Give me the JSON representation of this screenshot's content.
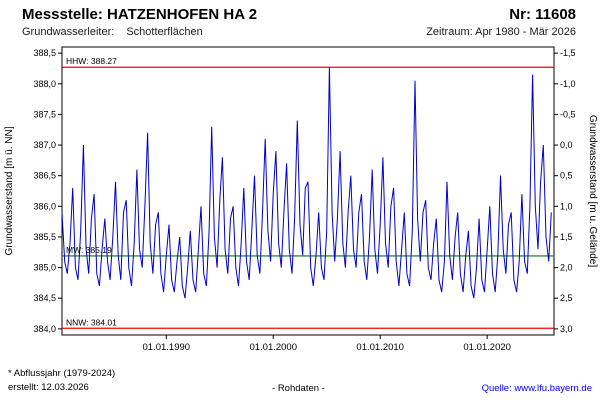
{
  "header": {
    "title": "Messstelle: HATZENHOFEN HA 2",
    "number": "Nr: 11608",
    "aquifer_label": "Grundwasserleiter:",
    "aquifer_value": "Schotterflächen",
    "period": "Zeitraum: Apr 1980 - Mär 2026"
  },
  "footer": {
    "note": "* Abflussjahr (1979-2024)",
    "created": "erstellt: 12.03.2026",
    "center": "- Rohdaten -",
    "source": "Quelle: www.lfu.bayern.de",
    "source_color": "#0000ff"
  },
  "chart_data": {
    "type": "line",
    "title": "",
    "x_axis": "date",
    "x_range": [
      1980.25,
      2026.25
    ],
    "x_start": 1980.25,
    "x_step": 0.25,
    "x_ticks": [
      {
        "t": 1990.0,
        "label": "01.01.1990"
      },
      {
        "t": 2000.0,
        "label": "01.01.2000"
      },
      {
        "t": 2010.0,
        "label": "01.01.2010"
      },
      {
        "t": 2020.0,
        "label": "01.01.2020"
      }
    ],
    "y_left": {
      "label": "Grundwasserstand [m ü. NN]",
      "min": 383.9,
      "max": 388.6,
      "ticks": [
        388.5,
        388.0,
        387.5,
        387.0,
        386.5,
        386.0,
        385.5,
        385.0,
        384.5,
        384.0
      ]
    },
    "y_right": {
      "label": "Grundwasserstand [m u. Gelände]",
      "ground_level": 387.0,
      "ticks": [
        -1.5,
        -1.0,
        -0.5,
        0.0,
        0.5,
        1.0,
        1.5,
        2.0,
        2.5,
        3.0
      ]
    },
    "reference_lines": [
      {
        "name": "HHW",
        "value": 388.27,
        "label": "HHW: 388.27",
        "color": "#ff0000"
      },
      {
        "name": "MW",
        "value": 385.19,
        "label": "MW: 385.19",
        "color": "#008000"
      },
      {
        "name": "NNW",
        "value": 384.01,
        "label": "NNW: 384.01",
        "color": "#ff0000"
      }
    ],
    "grid": false,
    "legend": "none",
    "series": [
      {
        "name": "Grundwasserstand (Rohdaten)",
        "color": "#0000cc",
        "values": [
          385.9,
          385.1,
          384.9,
          385.4,
          386.3,
          385.0,
          384.8,
          385.6,
          387.0,
          385.3,
          384.9,
          385.8,
          386.2,
          384.9,
          384.7,
          385.3,
          385.8,
          385.1,
          384.8,
          385.5,
          386.4,
          385.2,
          384.8,
          385.9,
          386.1,
          385.0,
          384.7,
          385.4,
          386.6,
          385.3,
          385.0,
          386.0,
          387.2,
          385.4,
          384.9,
          385.7,
          385.9,
          384.9,
          384.6,
          385.2,
          385.7,
          384.8,
          384.6,
          385.1,
          385.5,
          384.7,
          384.5,
          385.0,
          385.6,
          384.8,
          384.6,
          385.3,
          386.0,
          384.9,
          384.7,
          385.6,
          387.3,
          385.5,
          385.0,
          386.1,
          386.8,
          385.3,
          384.9,
          385.8,
          386.0,
          385.0,
          384.7,
          385.4,
          386.3,
          385.1,
          384.8,
          385.6,
          386.5,
          385.2,
          384.9,
          385.9,
          387.1,
          385.6,
          385.1,
          386.2,
          386.9,
          385.4,
          385.0,
          385.9,
          386.7,
          385.3,
          384.9,
          385.8,
          387.4,
          385.7,
          385.2,
          386.3,
          386.4,
          385.0,
          384.7,
          385.2,
          385.9,
          385.0,
          384.8,
          385.6,
          388.27,
          385.9,
          385.1,
          385.8,
          386.9,
          385.4,
          385.0,
          385.9,
          386.5,
          385.3,
          385.0,
          385.9,
          386.2,
          385.1,
          384.8,
          385.5,
          386.6,
          385.3,
          384.9,
          385.7,
          386.8,
          385.4,
          385.0,
          386.0,
          386.3,
          385.1,
          384.7,
          385.3,
          385.9,
          384.9,
          384.7,
          385.6,
          388.05,
          385.8,
          385.1,
          385.9,
          386.1,
          385.0,
          384.8,
          385.4,
          385.8,
          384.8,
          384.6,
          385.1,
          386.4,
          385.2,
          384.8,
          385.5,
          385.9,
          384.9,
          384.6,
          385.2,
          385.6,
          384.7,
          384.5,
          385.0,
          385.8,
          384.8,
          384.6,
          385.3,
          386.0,
          384.9,
          384.6,
          385.2,
          386.5,
          385.3,
          384.9,
          385.7,
          385.9,
          384.8,
          384.6,
          385.1,
          386.2,
          385.1,
          384.9,
          386.0,
          388.15,
          386.0,
          385.3,
          386.4,
          387.0,
          385.5,
          385.1,
          385.9
        ]
      }
    ]
  }
}
